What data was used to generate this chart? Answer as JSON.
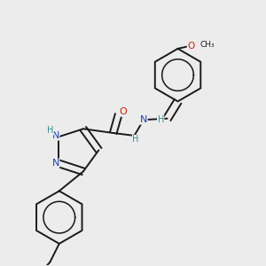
{
  "title": "",
  "bg_color": "#ececec",
  "bond_color": "#1a1a1a",
  "atom_colors": {
    "N": "#1e40af",
    "O": "#cc2200",
    "H": "#2d9090",
    "C": "#1a1a1a"
  },
  "figsize": [
    3.0,
    3.0
  ],
  "dpi": 100
}
